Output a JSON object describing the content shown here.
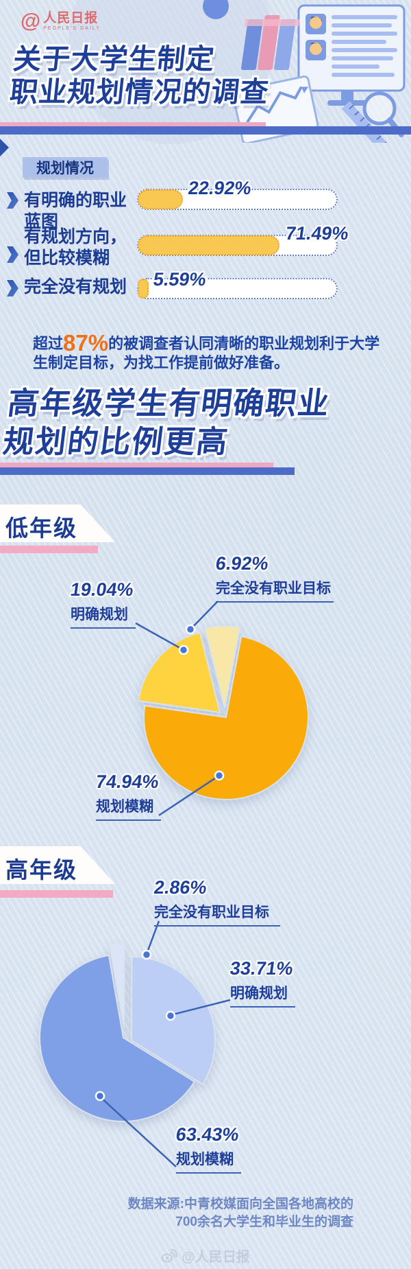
{
  "header": {
    "logo": {
      "at": "@",
      "name": "人民日报",
      "subtitle": "PEOPLE'S DAILY"
    },
    "title_line1": "关于大学生制定",
    "title_line2": "职业规划情况的调查"
  },
  "survey": {
    "badge": "规划情况",
    "bar_color": "#F9C850",
    "track_color": "#FFFFFF",
    "rows": [
      {
        "label_lines": [
          "有明确的职业蓝图"
        ],
        "value": 22.92,
        "value_label": "22.92%"
      },
      {
        "label_lines": [
          "有规划方向，",
          "但比较模糊"
        ],
        "value": 71.49,
        "value_label": "71.49%"
      },
      {
        "label_lines": [
          "完全没有规划"
        ],
        "value": 5.59,
        "value_label": "5.59%"
      }
    ]
  },
  "callout": {
    "prefix": "超过",
    "highlight": "87%",
    "highlight_color": "#EE7018",
    "suffix": "的被调查者认同清晰的职业规划利于大学生制定目标，为找工作提前做好准备。"
  },
  "section": {
    "heading_line1": "高年级学生有明确职业",
    "heading_line2": "规划的比例更高"
  },
  "chart_data": [
    {
      "type": "pie",
      "group": "低年级",
      "slices": [
        {
          "label": "完全没有职业目标",
          "value": 6.92,
          "value_label": "6.92%",
          "color": "#F7E8A8"
        },
        {
          "label": "规划模糊",
          "value": 74.94,
          "value_label": "74.94%",
          "color": "#FAAB09"
        },
        {
          "label": "明确规划",
          "value": 19.04,
          "value_label": "19.04%",
          "color": "#FFD23F"
        }
      ]
    },
    {
      "type": "pie",
      "group": "高年级",
      "slices": [
        {
          "label": "完全没有职业目标",
          "value": 2.86,
          "value_label": "2.86%",
          "color": "#DCE5F7"
        },
        {
          "label": "明确规划",
          "value": 33.71,
          "value_label": "33.71%",
          "color": "#BDCEF4"
        },
        {
          "label": "规划模糊",
          "value": 63.43,
          "value_label": "63.43%",
          "color": "#7FA0E6"
        }
      ]
    }
  ],
  "footer": {
    "source_line1": "数据来源:中青校媒面向全国各地高校的",
    "source_line2": "700余名大学生和毕业生的调查",
    "watermark": "@人民日报"
  }
}
